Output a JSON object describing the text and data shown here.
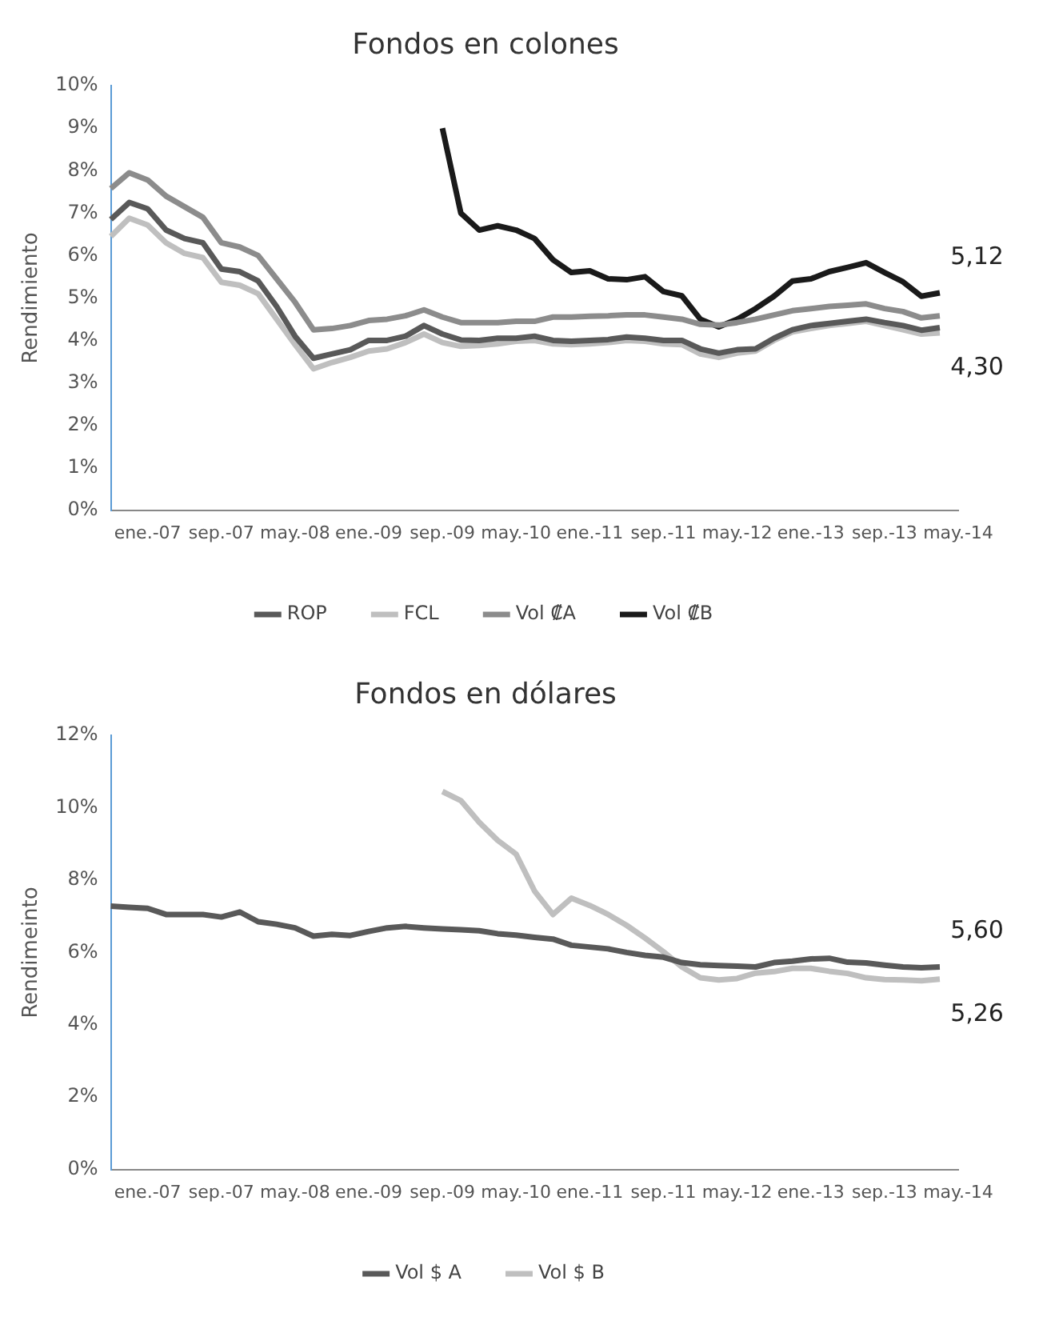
{
  "chart_data": [
    {
      "type": "line",
      "title": "Fondos en colones",
      "ylabel": "Rendimiento",
      "categories": [
        null,
        null,
        "ene.-07",
        null,
        null,
        null,
        "sep.-07",
        null,
        null,
        null,
        "may.-08",
        null,
        null,
        null,
        "ene.-09",
        null,
        null,
        null,
        "sep.-09",
        null,
        null,
        null,
        "may.-10",
        null,
        null,
        null,
        "ene.-11",
        null,
        null,
        null,
        "sep.-11",
        null,
        null,
        null,
        "may.-12",
        null,
        null,
        null,
        "ene.-13",
        null,
        null,
        null,
        "sep.-13",
        null,
        null,
        null,
        "may.-14"
      ],
      "series": [
        {
          "name": "ROP",
          "color": "#595959",
          "values": [
            6.85,
            7.25,
            7.1,
            6.6,
            6.4,
            6.3,
            5.68,
            5.62,
            5.4,
            4.8,
            4.1,
            3.58,
            3.68,
            3.78,
            4.0,
            4.0,
            4.1,
            4.35,
            4.15,
            4.01,
            4.0,
            4.05,
            4.05,
            4.1,
            4.0,
            3.98,
            4.0,
            4.02,
            4.08,
            4.05,
            4.0,
            4.0,
            3.8,
            3.7,
            3.78,
            3.8,
            4.05,
            4.25,
            4.35,
            4.4,
            4.45,
            4.5,
            4.42,
            4.35,
            4.24,
            4.3,
            null
          ]
        },
        {
          "name": "FCL",
          "color": "#bfbfbf",
          "values": [
            6.45,
            6.88,
            6.72,
            6.3,
            6.05,
            5.95,
            5.37,
            5.3,
            5.1,
            4.5,
            3.9,
            3.33,
            3.48,
            3.6,
            3.75,
            3.8,
            3.95,
            4.15,
            3.95,
            3.86,
            3.88,
            3.92,
            3.98,
            4.0,
            3.92,
            3.9,
            3.92,
            3.95,
            4.0,
            3.98,
            3.92,
            3.9,
            3.68,
            3.6,
            3.7,
            3.75,
            4.0,
            4.2,
            4.28,
            4.35,
            4.4,
            4.45,
            4.35,
            4.25,
            4.15,
            4.18,
            null
          ]
        },
        {
          "name": "Vol ₡A",
          "color": "#8c8c8c",
          "values": [
            7.58,
            7.95,
            7.78,
            7.4,
            7.15,
            6.9,
            6.3,
            6.2,
            6.0,
            5.45,
            4.9,
            4.25,
            4.28,
            4.35,
            4.47,
            4.5,
            4.58,
            4.72,
            4.55,
            4.42,
            4.42,
            4.42,
            4.45,
            4.45,
            4.55,
            4.55,
            4.57,
            4.58,
            4.6,
            4.6,
            4.55,
            4.5,
            4.38,
            4.36,
            4.42,
            4.5,
            4.6,
            4.7,
            4.75,
            4.8,
            4.83,
            4.86,
            4.75,
            4.68,
            4.53,
            4.58,
            null
          ]
        },
        {
          "name": "Vol ₡B",
          "color": "#1a1a1a",
          "values": [
            null,
            null,
            null,
            null,
            null,
            null,
            null,
            null,
            null,
            null,
            null,
            null,
            null,
            null,
            null,
            null,
            null,
            null,
            9.0,
            7.0,
            6.6,
            6.7,
            6.6,
            6.4,
            5.9,
            5.6,
            5.64,
            5.45,
            5.43,
            5.5,
            5.15,
            5.05,
            4.5,
            4.32,
            4.5,
            4.75,
            5.04,
            5.4,
            5.45,
            5.62,
            5.72,
            5.83,
            5.6,
            5.38,
            5.04,
            5.12,
            null
          ]
        }
      ],
      "ylim": [
        0,
        10
      ],
      "yticks": [
        {
          "value": 0,
          "label": "0%"
        },
        {
          "value": 1,
          "label": "1%"
        },
        {
          "value": 2,
          "label": "2%"
        },
        {
          "value": 3,
          "label": "3%"
        },
        {
          "value": 4,
          "label": "4%"
        },
        {
          "value": 5,
          "label": "5%"
        },
        {
          "value": 6,
          "label": "6%"
        },
        {
          "value": 7,
          "label": "7%"
        },
        {
          "value": 8,
          "label": "8%"
        },
        {
          "value": 9,
          "label": "9%"
        },
        {
          "value": 10,
          "label": "10%"
        }
      ],
      "grid": false,
      "legend": "bottom",
      "annotations": [
        "5,12",
        "4,30"
      ]
    },
    {
      "type": "line",
      "title": "Fondos en dólares",
      "ylabel": "Rendimeinto",
      "categories": [
        null,
        null,
        "ene.-07",
        null,
        null,
        null,
        "sep.-07",
        null,
        null,
        null,
        "may.-08",
        null,
        null,
        null,
        "ene.-09",
        null,
        null,
        null,
        "sep.-09",
        null,
        null,
        null,
        "may.-10",
        null,
        null,
        null,
        "ene.-11",
        null,
        null,
        null,
        "sep.-11",
        null,
        null,
        null,
        "may.-12",
        null,
        null,
        null,
        "ene.-13",
        null,
        null,
        null,
        "sep.-13",
        null,
        null,
        null,
        "may.-14"
      ],
      "series": [
        {
          "name": "Vol $ A",
          "color": "#595959",
          "values": [
            7.28,
            7.25,
            7.22,
            7.05,
            7.05,
            7.05,
            6.98,
            7.12,
            6.85,
            6.78,
            6.68,
            6.45,
            6.5,
            6.47,
            6.58,
            6.68,
            6.72,
            6.68,
            6.65,
            6.63,
            6.6,
            6.52,
            6.48,
            6.42,
            6.37,
            6.2,
            6.15,
            6.1,
            6.0,
            5.92,
            5.87,
            5.72,
            5.66,
            5.64,
            5.62,
            5.6,
            5.72,
            5.76,
            5.82,
            5.84,
            5.73,
            5.71,
            5.65,
            5.6,
            5.58,
            5.6,
            null
          ]
        },
        {
          "name": "Vol $ B",
          "color": "#bfbfbf",
          "values": [
            null,
            null,
            null,
            null,
            null,
            null,
            null,
            null,
            null,
            null,
            null,
            null,
            null,
            null,
            null,
            null,
            null,
            null,
            10.45,
            10.2,
            9.6,
            9.1,
            8.72,
            7.7,
            7.05,
            7.5,
            7.3,
            7.05,
            6.75,
            6.4,
            6.02,
            5.6,
            5.3,
            5.24,
            5.28,
            5.43,
            5.47,
            5.56,
            5.56,
            5.48,
            5.42,
            5.3,
            5.25,
            5.24,
            5.22,
            5.26,
            null
          ]
        }
      ],
      "ylim": [
        0,
        12
      ],
      "yticks": [
        {
          "value": 0,
          "label": "0%"
        },
        {
          "value": 2,
          "label": "2%"
        },
        {
          "value": 4,
          "label": "4%"
        },
        {
          "value": 6,
          "label": "6%"
        },
        {
          "value": 8,
          "label": "8%"
        },
        {
          "value": 10,
          "label": "10%"
        },
        {
          "value": 12,
          "label": "12%"
        }
      ],
      "grid": false,
      "legend": "bottom",
      "annotations": [
        "5,60",
        "5,26"
      ]
    }
  ]
}
